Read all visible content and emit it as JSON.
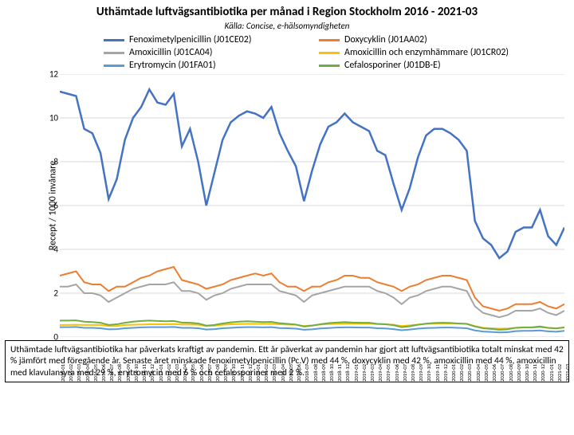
{
  "title": "Uthämtade luftvägsantibiotika per månad i Region Stockholm 2016 - 2021-03",
  "subtitle": "Källa: Concise, e-hälsomyndigheten",
  "ylabel": "Recept / 1000 invånare",
  "ylim": [
    0,
    12
  ],
  "ytick_step": 2,
  "grid_color": "#d9d9d9",
  "background_color": "#ffffff",
  "x_categories": [
    "2016-01",
    "2016-02",
    "2016-03",
    "2016-04",
    "2016-05",
    "2016-06",
    "2016-07",
    "2016-08",
    "2016-09",
    "2016-10",
    "2016-11",
    "2016-12",
    "2017-01",
    "2017-02",
    "2017-03",
    "2017-04",
    "2017-05",
    "2017-06",
    "2017-07",
    "2017-08",
    "2017-09",
    "2017-10",
    "2017-11",
    "2017-12",
    "2018-01",
    "2018-02",
    "2018-03",
    "2018-04",
    "2018-05",
    "2018-06",
    "2018-07",
    "2018-08",
    "2018-09",
    "2018-10",
    "2018-11",
    "2018-12",
    "2019-01",
    "2019-02",
    "2019-03",
    "2019-04",
    "2019-05",
    "2019-06",
    "2019-07",
    "2019-08",
    "2019-09",
    "2019-10",
    "2019-11",
    "2019-12",
    "2020-01",
    "2020-02",
    "2020-03",
    "2020-04",
    "2020-05",
    "2020-06",
    "2020-07",
    "2020-08",
    "2020-09",
    "2020-10",
    "2020-11",
    "2020-12",
    "2021-01",
    "2021-02",
    "2021-03"
  ],
  "series": [
    {
      "name": "Fenoximetylpenicillin (J01CE02)",
      "color": "#4472c4",
      "width": 2.5,
      "values": [
        11.2,
        11.1,
        11.0,
        9.5,
        9.3,
        8.4,
        6.3,
        7.2,
        9.0,
        10.0,
        10.5,
        11.3,
        10.7,
        10.6,
        11.1,
        8.7,
        9.5,
        8.0,
        6.0,
        7.5,
        9.0,
        9.8,
        10.1,
        10.3,
        10.2,
        10.0,
        10.5,
        9.3,
        8.5,
        7.8,
        6.2,
        7.6,
        8.8,
        9.6,
        9.8,
        10.2,
        9.8,
        9.6,
        9.4,
        8.5,
        8.3,
        7.0,
        5.8,
        6.8,
        8.2,
        9.2,
        9.5,
        9.5,
        9.3,
        9.0,
        8.5,
        5.3,
        4.5,
        4.2,
        3.6,
        3.9,
        4.8,
        5.0,
        5.0,
        5.8,
        4.6,
        4.2,
        5.0
      ]
    },
    {
      "name": "Doxycyklin (J01AA02)",
      "color": "#ed7d31",
      "width": 2,
      "values": [
        2.8,
        2.9,
        3.0,
        2.5,
        2.4,
        2.4,
        2.1,
        2.3,
        2.3,
        2.5,
        2.7,
        2.8,
        3.0,
        3.1,
        3.2,
        2.6,
        2.5,
        2.4,
        2.2,
        2.3,
        2.4,
        2.6,
        2.7,
        2.8,
        2.9,
        2.8,
        2.9,
        2.5,
        2.3,
        2.3,
        2.1,
        2.3,
        2.3,
        2.5,
        2.6,
        2.8,
        2.8,
        2.7,
        2.7,
        2.5,
        2.4,
        2.3,
        2.1,
        2.3,
        2.4,
        2.6,
        2.7,
        2.8,
        2.8,
        2.7,
        2.6,
        1.8,
        1.4,
        1.3,
        1.2,
        1.3,
        1.5,
        1.5,
        1.5,
        1.6,
        1.4,
        1.3,
        1.5
      ]
    },
    {
      "name": "Amoxicillin (J01CA04)",
      "color": "#a5a5a5",
      "width": 2,
      "values": [
        2.3,
        2.3,
        2.4,
        2.0,
        2.0,
        1.9,
        1.6,
        1.8,
        2.0,
        2.2,
        2.3,
        2.4,
        2.4,
        2.4,
        2.5,
        2.1,
        2.1,
        2.0,
        1.7,
        1.9,
        2.0,
        2.2,
        2.3,
        2.4,
        2.4,
        2.4,
        2.4,
        2.1,
        2.0,
        1.9,
        1.6,
        1.9,
        2.0,
        2.1,
        2.2,
        2.3,
        2.3,
        2.3,
        2.3,
        2.1,
        2.0,
        1.8,
        1.5,
        1.8,
        1.9,
        2.1,
        2.2,
        2.3,
        2.3,
        2.2,
        2.1,
        1.4,
        1.1,
        1.0,
        0.9,
        1.0,
        1.2,
        1.2,
        1.2,
        1.3,
        1.1,
        1.0,
        1.2
      ]
    },
    {
      "name": "Amoxicillin och enzymhämmare (J01CR02)",
      "color": "#ffc000",
      "width": 2,
      "values": [
        0.55,
        0.55,
        0.56,
        0.55,
        0.55,
        0.55,
        0.5,
        0.5,
        0.55,
        0.56,
        0.57,
        0.58,
        0.58,
        0.58,
        0.59,
        0.57,
        0.57,
        0.56,
        0.5,
        0.52,
        0.56,
        0.58,
        0.59,
        0.6,
        0.6,
        0.6,
        0.6,
        0.58,
        0.57,
        0.56,
        0.5,
        0.53,
        0.57,
        0.59,
        0.6,
        0.61,
        0.61,
        0.61,
        0.61,
        0.59,
        0.58,
        0.56,
        0.5,
        0.53,
        0.57,
        0.6,
        0.61,
        0.62,
        0.62,
        0.61,
        0.6,
        0.5,
        0.42,
        0.4,
        0.38,
        0.39,
        0.42,
        0.43,
        0.43,
        0.45,
        0.42,
        0.4,
        0.43
      ]
    },
    {
      "name": "Erytromycin (J01FA01)",
      "color": "#5b9bd5",
      "width": 2,
      "values": [
        0.45,
        0.45,
        0.46,
        0.42,
        0.42,
        0.4,
        0.35,
        0.36,
        0.4,
        0.42,
        0.44,
        0.45,
        0.45,
        0.45,
        0.46,
        0.42,
        0.42,
        0.4,
        0.34,
        0.36,
        0.4,
        0.42,
        0.44,
        0.45,
        0.45,
        0.44,
        0.45,
        0.41,
        0.4,
        0.38,
        0.33,
        0.35,
        0.39,
        0.41,
        0.43,
        0.44,
        0.44,
        0.43,
        0.43,
        0.4,
        0.39,
        0.36,
        0.31,
        0.34,
        0.38,
        0.41,
        0.42,
        0.43,
        0.43,
        0.42,
        0.4,
        0.3,
        0.25,
        0.23,
        0.21,
        0.22,
        0.27,
        0.28,
        0.28,
        0.3,
        0.26,
        0.24,
        0.28
      ]
    },
    {
      "name": "Cefalosporiner (J01DB-E)",
      "color": "#70ad47",
      "width": 2,
      "values": [
        0.75,
        0.75,
        0.76,
        0.7,
        0.68,
        0.65,
        0.55,
        0.58,
        0.65,
        0.7,
        0.73,
        0.75,
        0.73,
        0.72,
        0.73,
        0.66,
        0.65,
        0.62,
        0.52,
        0.55,
        0.62,
        0.67,
        0.7,
        0.72,
        0.7,
        0.68,
        0.69,
        0.63,
        0.6,
        0.57,
        0.48,
        0.52,
        0.58,
        0.63,
        0.66,
        0.68,
        0.66,
        0.65,
        0.65,
        0.6,
        0.58,
        0.54,
        0.45,
        0.49,
        0.56,
        0.61,
        0.64,
        0.65,
        0.64,
        0.62,
        0.6,
        0.48,
        0.4,
        0.37,
        0.33,
        0.35,
        0.42,
        0.44,
        0.44,
        0.48,
        0.42,
        0.39,
        0.44
      ]
    }
  ],
  "caption": "Uthämtade luftvägsantibiotika har påverkats kraftigt av pandemin. Ett år påverkat av pandemin har gjort att luftvägsantibiotika totalt minskat med 42 % jämfört med föregående år. Senaste året minskade fenoximetylpenicillin (Pc.V) med 44 %, doxycyklin med 42 %, amoxicillin med 44 %, amoxicillin med klavulansyra med 29 %, erytromycin med 6 % och cefalosporiner med 2 %."
}
